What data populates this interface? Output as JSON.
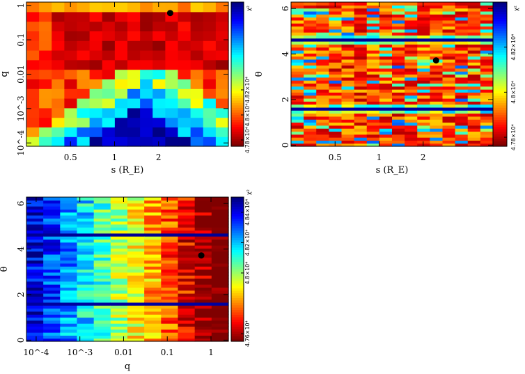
{
  "chart_data": [
    {
      "id": "s-q",
      "type": "heatmap",
      "xlabel": "s (R_E)",
      "ylabel": "q",
      "xscale": "log",
      "yscale": "log",
      "xlim": [
        0.25,
        6.0
      ],
      "ylim": [
        8e-05,
        1.25
      ],
      "x_ticks": [
        {
          "v": 0.5,
          "label": "0.5"
        },
        {
          "v": 1,
          "label": "1"
        },
        {
          "v": 2,
          "label": "2"
        }
      ],
      "y_ticks": [
        {
          "v": 0.0001,
          "label": "10^-4"
        },
        {
          "v": 0.001,
          "label": "10^-3"
        },
        {
          "v": 0.01,
          "label": "0.01"
        },
        {
          "v": 0.1,
          "label": "0.1"
        },
        {
          "v": 1,
          "label": "1"
        }
      ],
      "grid": {
        "nx": 16,
        "ny": 15
      },
      "best_fit": {
        "x": 2.4,
        "y": 0.6
      },
      "colorbar": {
        "label": "χ²",
        "min": 4.775,
        "max": 4.89,
        "ticks": [
          {
            "v": 4.78,
            "label": "4.78×10⁴"
          },
          {
            "v": 4.8,
            "label": "4.8×10⁴"
          },
          {
            "v": 4.82,
            "label": "4.82×10⁴"
          }
        ]
      }
    },
    {
      "id": "s-theta",
      "type": "heatmap",
      "xlabel": "s (R_E)",
      "ylabel": "θ",
      "xscale": "log",
      "yscale": "linear",
      "xlim": [
        0.25,
        6.0
      ],
      "ylim": [
        -0.05,
        6.28
      ],
      "x_ticks": [
        {
          "v": 0.5,
          "label": "0.5"
        },
        {
          "v": 1,
          "label": "1"
        },
        {
          "v": 2,
          "label": "2"
        }
      ],
      "y_ticks": [
        {
          "v": 0,
          "label": "0"
        },
        {
          "v": 2,
          "label": "2"
        },
        {
          "v": 4,
          "label": "4"
        },
        {
          "v": 6,
          "label": "6"
        }
      ],
      "grid": {
        "nx": 16,
        "ny": 48
      },
      "best_fit": {
        "x": 2.45,
        "y": 3.72
      },
      "colorbar": {
        "label": "χ²",
        "min": 4.776,
        "max": 4.84,
        "ticks": [
          {
            "v": 4.78,
            "label": "4.78×10⁴"
          },
          {
            "v": 4.8,
            "label": "4.8×10⁴"
          },
          {
            "v": 4.82,
            "label": "4.82×10⁴"
          }
        ]
      }
    },
    {
      "id": "q-theta",
      "type": "heatmap",
      "xlabel": "q",
      "ylabel": "θ",
      "xscale": "log",
      "yscale": "linear",
      "xlim": [
        6e-05,
        2.5
      ],
      "ylim": [
        -0.05,
        6.28
      ],
      "x_ticks": [
        {
          "v": 0.0001,
          "label": "10^-4"
        },
        {
          "v": 0.001,
          "label": "10^-3"
        },
        {
          "v": 0.01,
          "label": "0.01"
        },
        {
          "v": 0.1,
          "label": "0.1"
        },
        {
          "v": 1,
          "label": "1"
        }
      ],
      "y_ticks": [
        {
          "v": 0,
          "label": "0"
        },
        {
          "v": 2,
          "label": "2"
        },
        {
          "v": 4,
          "label": "4"
        },
        {
          "v": 6,
          "label": "6"
        }
      ],
      "grid": {
        "nx": 12,
        "ny": 48
      },
      "best_fit": {
        "x": 0.6,
        "y": 3.72
      },
      "colorbar": {
        "label": "χ²",
        "min": 4.755,
        "max": 4.85,
        "ticks": [
          {
            "v": 4.76,
            "label": "4.76×10⁴"
          },
          {
            "v": 4.8,
            "label": "4.8×10⁴"
          },
          {
            "v": 4.82,
            "label": "4.82×10⁴"
          },
          {
            "v": 4.84,
            "label": "4.84×10⁴"
          }
        ]
      }
    }
  ]
}
